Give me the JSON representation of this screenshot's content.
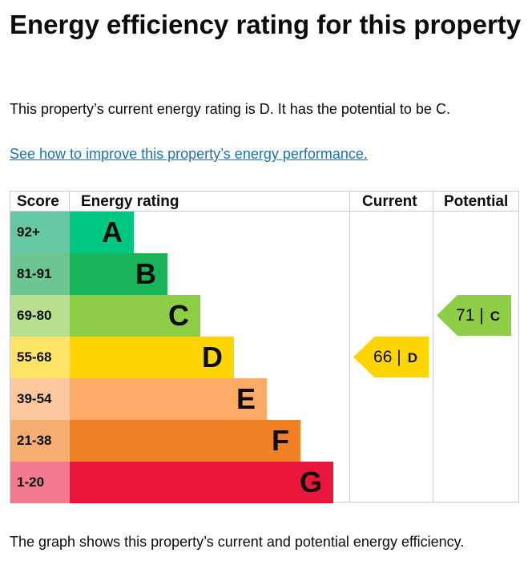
{
  "title": "Energy efficiency rating for this property",
  "intro": "This property’s current energy rating is D. It has the potential to be C.",
  "link": "See how to improve this property’s energy performance.",
  "table": {
    "headers": {
      "score": "Score",
      "rating": "Energy rating",
      "current": "Current",
      "potential": "Potential"
    },
    "rows": [
      {
        "score": "92+",
        "band": "A",
        "color": "#00c781",
        "light": "#64c8a2"
      },
      {
        "score": "81-91",
        "band": "B",
        "color": "#19b459",
        "light": "#6cc690"
      },
      {
        "score": "69-80",
        "band": "C",
        "color": "#8dce46",
        "light": "#b7df8f"
      },
      {
        "score": "55-68",
        "band": "D",
        "color": "#ffd500",
        "light": "#ffe466"
      },
      {
        "score": "39-54",
        "band": "E",
        "color": "#fcaa65",
        "light": "#fdc79d"
      },
      {
        "score": "21-38",
        "band": "F",
        "color": "#ef8023",
        "light": "#f5ae72"
      },
      {
        "score": "1-20",
        "band": "G",
        "color": "#e9153b",
        "light": "#f27a8f"
      }
    ],
    "current": {
      "value": "66",
      "separator": "|",
      "band": "D",
      "color": "#ffd500"
    },
    "potential": {
      "value": "71",
      "separator": "|",
      "band": "C",
      "color": "#8dce46"
    }
  },
  "footer": "The graph shows this property’s current and potential energy efficiency."
}
